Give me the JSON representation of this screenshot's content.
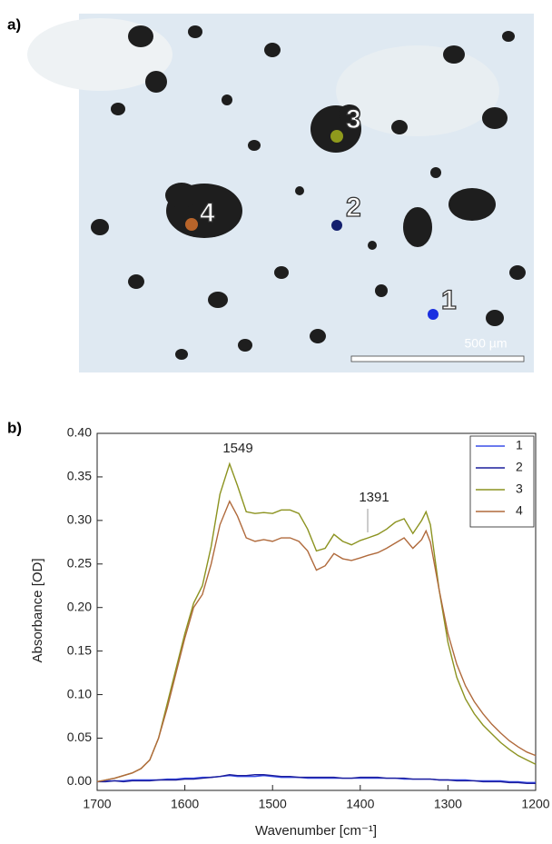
{
  "panel_labels": [
    "a)",
    "b)"
  ],
  "micrograph": {
    "points": [
      {
        "label": "1",
        "color": "#1a2fe0"
      },
      {
        "label": "2",
        "color": "#14206e"
      },
      {
        "label": "3",
        "color": "#8f9a1c"
      },
      {
        "label": "4",
        "color": "#b8642a"
      }
    ],
    "scale_bar": "500 µm"
  },
  "chart_data": {
    "type": "line",
    "xlabel": "Wavenumber [cm⁻¹]",
    "ylabel": "Absorbance [OD]",
    "annotations": [
      "1549",
      "1391"
    ],
    "xlim": [
      1700,
      1200
    ],
    "ylim": [
      -0.01,
      0.4
    ],
    "xticks": [
      1700,
      1600,
      1500,
      1400,
      1300,
      1200
    ],
    "yticks": [
      {
        "value": 0,
        "label": "0.00"
      },
      {
        "value": 0.05,
        "label": "0.05"
      },
      {
        "value": 0.1,
        "label": "0.10"
      },
      {
        "value": 0.15,
        "label": "0.15"
      },
      {
        "value": 0.2,
        "label": "0.20"
      },
      {
        "value": 0.25,
        "label": "0.25"
      },
      {
        "value": 0.3,
        "label": "0.30"
      },
      {
        "value": 0.35,
        "label": "0.35"
      },
      {
        "value": 0.4,
        "label": "0.40"
      }
    ],
    "legend": "upper right",
    "x": [
      1700,
      1690,
      1680,
      1670,
      1660,
      1650,
      1640,
      1630,
      1620,
      1610,
      1600,
      1590,
      1580,
      1570,
      1560,
      1549,
      1540,
      1530,
      1520,
      1510,
      1500,
      1490,
      1480,
      1470,
      1460,
      1450,
      1440,
      1430,
      1420,
      1410,
      1400,
      1391,
      1380,
      1370,
      1360,
      1350,
      1340,
      1330,
      1325,
      1320,
      1310,
      1300,
      1290,
      1280,
      1270,
      1260,
      1250,
      1240,
      1230,
      1220,
      1210,
      1200
    ],
    "series": [
      {
        "name": "1",
        "color": "#3a4fe8",
        "values": [
          0,
          0.001,
          0.001,
          0.001,
          0.002,
          0.002,
          0.002,
          0.002,
          0.003,
          0.003,
          0.004,
          0.004,
          0.005,
          0.005,
          0.006,
          0.007,
          0.006,
          0.006,
          0.006,
          0.007,
          0.006,
          0.005,
          0.005,
          0.005,
          0.004,
          0.004,
          0.004,
          0.004,
          0.004,
          0.004,
          0.004,
          0.004,
          0.004,
          0.004,
          0.004,
          0.003,
          0.003,
          0.003,
          0.003,
          0.003,
          0.002,
          0.002,
          0.002,
          0.002,
          0.001,
          0.001,
          0.001,
          0.001,
          0.0,
          0.0,
          -0.001,
          -0.001
        ]
      },
      {
        "name": "2",
        "color": "#1c1e9c",
        "values": [
          0,
          0.0,
          0.001,
          0.0,
          0.001,
          0.001,
          0.001,
          0.002,
          0.002,
          0.002,
          0.003,
          0.003,
          0.004,
          0.005,
          0.006,
          0.008,
          0.007,
          0.007,
          0.008,
          0.008,
          0.007,
          0.006,
          0.006,
          0.005,
          0.005,
          0.005,
          0.005,
          0.005,
          0.004,
          0.004,
          0.005,
          0.005,
          0.005,
          0.004,
          0.004,
          0.004,
          0.003,
          0.003,
          0.003,
          0.003,
          0.002,
          0.002,
          0.001,
          0.001,
          0.001,
          0.0,
          0.0,
          0.0,
          -0.001,
          -0.001,
          -0.002,
          -0.002
        ]
      },
      {
        "name": "3",
        "color": "#8c9320",
        "values": [
          0,
          0.002,
          0.004,
          0.007,
          0.01,
          0.015,
          0.025,
          0.05,
          0.09,
          0.13,
          0.17,
          0.205,
          0.225,
          0.27,
          0.33,
          0.365,
          0.34,
          0.31,
          0.308,
          0.309,
          0.308,
          0.312,
          0.312,
          0.308,
          0.29,
          0.265,
          0.268,
          0.284,
          0.276,
          0.272,
          0.277,
          0.28,
          0.284,
          0.29,
          0.298,
          0.302,
          0.285,
          0.3,
          0.31,
          0.295,
          0.22,
          0.16,
          0.12,
          0.095,
          0.078,
          0.065,
          0.055,
          0.045,
          0.037,
          0.03,
          0.025,
          0.02
        ]
      },
      {
        "name": "4",
        "color": "#b06a3c",
        "values": [
          0,
          0.002,
          0.004,
          0.007,
          0.01,
          0.015,
          0.025,
          0.05,
          0.085,
          0.125,
          0.165,
          0.2,
          0.215,
          0.25,
          0.295,
          0.322,
          0.305,
          0.28,
          0.276,
          0.278,
          0.276,
          0.28,
          0.28,
          0.276,
          0.265,
          0.243,
          0.248,
          0.262,
          0.256,
          0.254,
          0.257,
          0.26,
          0.263,
          0.268,
          0.274,
          0.28,
          0.268,
          0.278,
          0.288,
          0.275,
          0.22,
          0.17,
          0.135,
          0.11,
          0.092,
          0.078,
          0.066,
          0.056,
          0.047,
          0.04,
          0.034,
          0.03
        ]
      }
    ]
  }
}
